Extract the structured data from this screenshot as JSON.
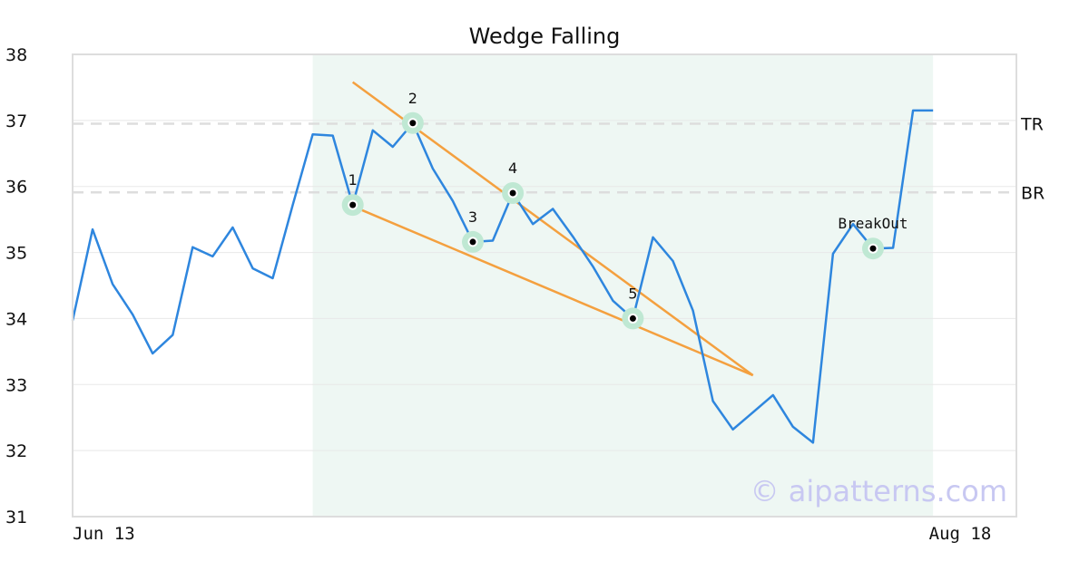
{
  "chart_data": {
    "type": "line",
    "title": "Wedge Falling",
    "xlabel": "",
    "ylabel": "",
    "ylim": [
      31,
      38
    ],
    "yticks": [
      31,
      32,
      33,
      34,
      35,
      36,
      37,
      38
    ],
    "x_tick_labels": [
      {
        "index": 0,
        "label": "Jun 13"
      },
      {
        "index": 46,
        "label": "Aug 18"
      }
    ],
    "grid": "horizontal",
    "series": [
      {
        "values": [
          33.97,
          35.35,
          34.52,
          34.06,
          33.47,
          33.75,
          35.08,
          34.94,
          35.38,
          34.76,
          34.61,
          35.72,
          36.79,
          36.77,
          35.72,
          36.85,
          36.6,
          36.96,
          36.27,
          35.78,
          35.16,
          35.18,
          35.9,
          35.43,
          35.66,
          35.24,
          34.79,
          34.27,
          34.0,
          35.23,
          34.87,
          34.12,
          32.75,
          32.32,
          32.58,
          32.84,
          32.36,
          32.12,
          34.98,
          35.43,
          35.06,
          35.07,
          37.15,
          37.15
        ]
      }
    ],
    "shaded_region": {
      "start_index": 12,
      "end_index": 43,
      "color": "#eef7f3"
    },
    "reference_lines": [
      {
        "label": "TR",
        "value": 36.95
      },
      {
        "label": "BR",
        "value": 35.91
      }
    ],
    "trend_lines": [
      {
        "from": [
          14,
          37.58
        ],
        "to": [
          34,
          33.14
        ]
      },
      {
        "from": [
          14,
          35.7
        ],
        "to": [
          34,
          33.14
        ]
      }
    ],
    "pivots": [
      {
        "label": "1",
        "index": 14,
        "value": 35.72
      },
      {
        "label": "2",
        "index": 17,
        "value": 36.96
      },
      {
        "label": "3",
        "index": 20,
        "value": 35.16
      },
      {
        "label": "4",
        "index": 22,
        "value": 35.9
      },
      {
        "label": "5",
        "index": 28,
        "value": 34.0
      },
      {
        "label": "BreakOut",
        "index": 40,
        "value": 35.06
      }
    ],
    "watermark": "© aipatterns.com",
    "colors": {
      "line": "#2e86de",
      "trend": "#f4a03f",
      "marker_halo": "#bfe8d3",
      "reference": "#dddddd",
      "grid": "#e8e8e8",
      "frame": "#dddddd",
      "watermark": "#c8c8f2"
    }
  }
}
